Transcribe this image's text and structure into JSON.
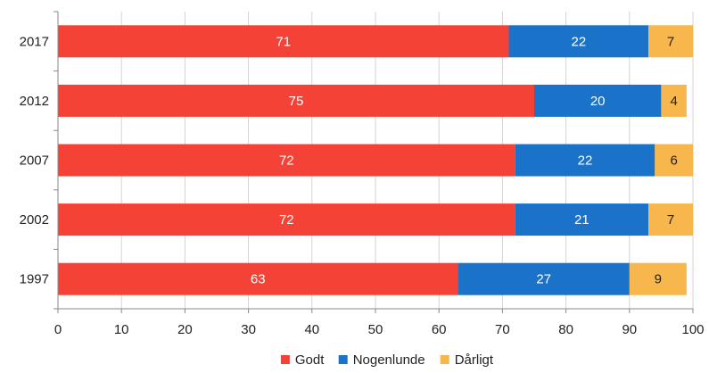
{
  "chart_data": {
    "type": "bar",
    "orientation": "horizontal",
    "stacked": true,
    "categories": [
      "2017",
      "2012",
      "2007",
      "2002",
      "1997"
    ],
    "series": [
      {
        "name": "Godt",
        "values": [
          71,
          75,
          72,
          72,
          63
        ],
        "color": "#f44336",
        "label_color": "#ffffff"
      },
      {
        "name": "Nogenlunde",
        "values": [
          22,
          20,
          22,
          21,
          27
        ],
        "color": "#1a73c8",
        "label_color": "#ffffff"
      },
      {
        "name": "Dårligt",
        "values": [
          7,
          4,
          6,
          7,
          9
        ],
        "color": "#f8b74c",
        "label_color": "#222222"
      }
    ],
    "xlim": [
      0,
      100
    ],
    "x_ticks": [
      0,
      10,
      20,
      30,
      40,
      50,
      60,
      70,
      80,
      90,
      100
    ],
    "grid": true,
    "legend_position": "bottom",
    "title": "",
    "xlabel": "",
    "ylabel": ""
  }
}
